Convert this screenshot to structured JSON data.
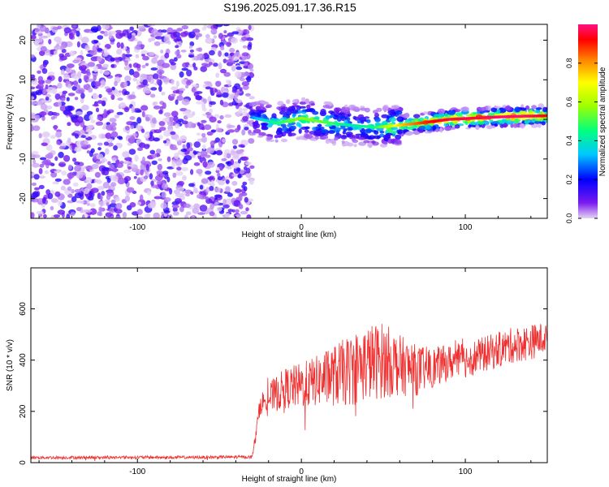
{
  "figure": {
    "title": "S196.2025.091.17.36.R15"
  },
  "chart_data": [
    {
      "type": "heatmap",
      "xlabel": "Height of straight line (km)",
      "ylabel": "Frequency (Hz)",
      "xlim": [
        -165,
        150
      ],
      "ylim": [
        -25,
        24
      ],
      "x_ticks": [
        -100,
        0,
        100
      ],
      "y_ticks": [
        -20,
        -10,
        0,
        10,
        20
      ],
      "colorbar": {
        "label": "Normalized spectral amplitude",
        "range": [
          0,
          1
        ],
        "ticks": [
          0.0,
          0.2,
          0.4,
          0.6,
          0.8
        ],
        "colors": [
          "#e6d5f5",
          "#7a1aee",
          "#0000ff",
          "#00c8ff",
          "#00ff80",
          "#a0ff00",
          "#ffff00",
          "#ff8000",
          "#ff0000",
          "#ff1080"
        ]
      },
      "noise_region": {
        "x": [
          -165,
          -30
        ],
        "amplitude_range": [
          0.0,
          0.2
        ]
      },
      "signal_trace": {
        "x": [
          -30,
          -15,
          0,
          15,
          30,
          45,
          60,
          75,
          90,
          105,
          120,
          135,
          150
        ],
        "freq": [
          0.5,
          -1.0,
          0.3,
          -0.8,
          -1.5,
          -2.0,
          -1.5,
          -0.8,
          0.0,
          0.3,
          0.6,
          0.8,
          0.9
        ],
        "amplitude": [
          0.3,
          0.45,
          0.55,
          0.5,
          0.4,
          0.45,
          0.7,
          0.85,
          0.95,
          0.95,
          0.98,
          1.0,
          0.9
        ]
      },
      "grid": false
    },
    {
      "type": "line",
      "xlabel": "Height of straight line (km)",
      "ylabel": "SNR (10 * v/v)",
      "xlim": [
        -165,
        150
      ],
      "ylim": [
        0,
        760
      ],
      "x_ticks": [
        -100,
        0,
        100
      ],
      "y_ticks": [
        0,
        200,
        400,
        600
      ],
      "series": [
        {
          "color": "#f03030",
          "x": [
            -165,
            -140,
            -120,
            -100,
            -80,
            -60,
            -40,
            -30,
            -25,
            -20,
            -10,
            0,
            10,
            20,
            30,
            40,
            50,
            60,
            70,
            80,
            90,
            100,
            110,
            120,
            130,
            140,
            150
          ],
          "values": [
            20,
            20,
            20,
            21,
            20,
            21,
            22,
            22,
            230,
            250,
            290,
            300,
            320,
            340,
            360,
            390,
            400,
            380,
            360,
            370,
            390,
            400,
            420,
            440,
            460,
            470,
            490
          ],
          "spread": [
            6,
            6,
            6,
            6,
            6,
            6,
            6,
            6,
            40,
            60,
            80,
            90,
            100,
            120,
            140,
            150,
            150,
            120,
            100,
            80,
            70,
            70,
            70,
            70,
            70,
            70,
            60
          ]
        }
      ],
      "grid": false
    }
  ]
}
